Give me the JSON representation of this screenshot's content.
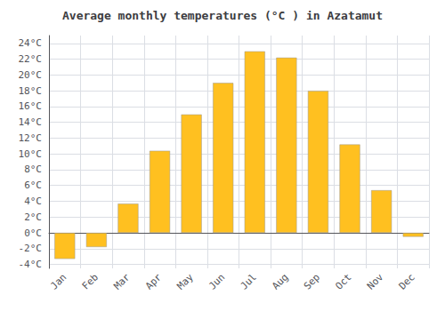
{
  "chart_data": {
    "type": "bar",
    "title": "Average monthly temperatures (°C ) in Azatamut",
    "categories": [
      "Jan",
      "Feb",
      "Mar",
      "Apr",
      "May",
      "Jun",
      "Jul",
      "Aug",
      "Sep",
      "Oct",
      "Nov",
      "Dec"
    ],
    "values": [
      -3.3,
      -1.8,
      3.7,
      10.4,
      15.0,
      19.0,
      23.0,
      22.2,
      18.0,
      11.2,
      5.4,
      -0.5
    ],
    "color": "#FFC020",
    "ylim": [
      -4.5,
      25
    ],
    "yticks": [
      {
        "value": -4,
        "label": "-4°C"
      },
      {
        "value": -2,
        "label": "-2°C"
      },
      {
        "value": 0,
        "label": "0°C"
      },
      {
        "value": 2,
        "label": "2°C"
      },
      {
        "value": 4,
        "label": "4°C"
      },
      {
        "value": 6,
        "label": "6°C"
      },
      {
        "value": 8,
        "label": "8°C"
      },
      {
        "value": 10,
        "label": "10°C"
      },
      {
        "value": 12,
        "label": "12°C"
      },
      {
        "value": 14,
        "label": "14°C"
      },
      {
        "value": 16,
        "label": "16°C"
      },
      {
        "value": 18,
        "label": "18°C"
      },
      {
        "value": 20,
        "label": "20°C"
      },
      {
        "value": 22,
        "label": "22°C"
      },
      {
        "value": 24,
        "label": "24°C"
      }
    ],
    "grid": true
  }
}
